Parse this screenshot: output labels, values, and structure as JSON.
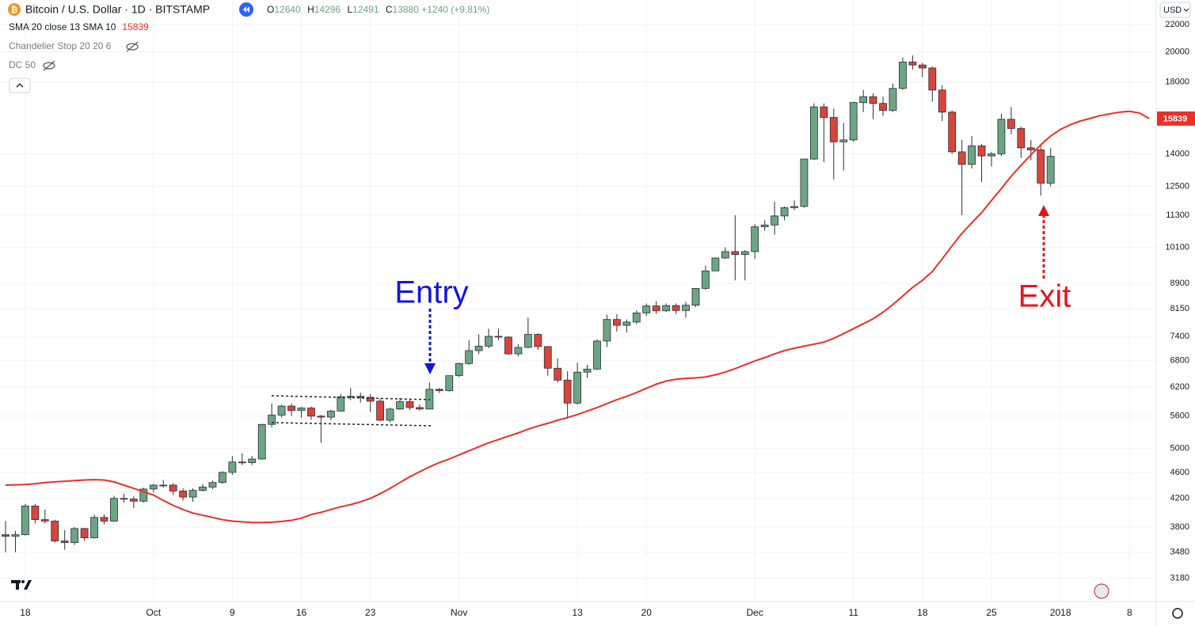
{
  "chart_data": {
    "type": "candlestick",
    "title": "Bitcoin / U.S. Dollar · 1D · BITSTAMP",
    "ohlc_labels": [
      "O",
      "H",
      "L",
      "C"
    ],
    "change": "+1240 (+9.81%)",
    "currency": "USD",
    "indicators": [
      "Chandelier Stop 20 20 6",
      "DC 50"
    ],
    "up_color": "#6ca583",
    "down_color": "#d9453a",
    "log_scale": true,
    "grid": true,
    "ylim": [
      2930,
      23970
    ],
    "yticks": [
      22000,
      20000,
      18000,
      14000,
      12500,
      11300,
      10100,
      8900,
      8150,
      7400,
      6800,
      6200,
      5600,
      5000,
      4600,
      4200,
      3800,
      3480,
      3180
    ],
    "categories": [
      null,
      null,
      "18",
      null,
      null,
      null,
      null,
      null,
      null,
      null,
      null,
      null,
      null,
      null,
      null,
      "Oct",
      null,
      null,
      null,
      null,
      null,
      null,
      null,
      "9",
      null,
      null,
      null,
      null,
      null,
      null,
      "16",
      null,
      null,
      null,
      null,
      null,
      null,
      "23",
      null,
      null,
      null,
      null,
      null,
      null,
      null,
      null,
      "Nov",
      null,
      null,
      null,
      null,
      null,
      null,
      null,
      null,
      null,
      null,
      null,
      "13",
      null,
      null,
      null,
      null,
      null,
      null,
      "20",
      null,
      null,
      null,
      null,
      null,
      null,
      null,
      null,
      null,
      null,
      "Dec",
      null,
      null,
      null,
      null,
      null,
      null,
      null,
      null,
      null,
      "11",
      null,
      null,
      null,
      null,
      null,
      null,
      "18",
      null,
      null,
      null,
      null,
      null,
      null,
      "25",
      null,
      null,
      null,
      null,
      null,
      null,
      "2018",
      null,
      null,
      null,
      null,
      null,
      null,
      "8",
      null,
      null
    ],
    "open": [
      3700,
      3680,
      3700,
      4090,
      3900,
      3880,
      3620,
      3600,
      3780,
      3660,
      3930,
      3880,
      4200,
      4190,
      4160,
      4340,
      4400,
      4400,
      4310,
      4220,
      4320,
      4370,
      4440,
      4600,
      4770,
      4760,
      4820,
      5440,
      5620,
      5800,
      5710,
      5760,
      5600,
      5580,
      5700,
      5990,
      6000,
      5980,
      5900,
      5520,
      5740,
      5890,
      5770,
      5740,
      6150,
      6120,
      6450,
      6730,
      7040,
      7150,
      7400,
      7380,
      6960,
      7120,
      7450,
      7140,
      6620,
      6350,
      5860,
      6530,
      6600,
      7280,
      7850,
      7690,
      7780,
      8030,
      8230,
      8090,
      8240,
      8100,
      8250,
      8750,
      9300,
      9730,
      9950,
      9850,
      9950,
      10850,
      10920,
      11270,
      11600,
      11650,
      13750,
      16500,
      15900,
      14600,
      14700,
      16750,
      17100,
      16700,
      16300,
      17600,
      19300,
      19100,
      18900,
      17500,
      16200,
      14100,
      13500,
      14400,
      13900,
      14000,
      15800,
      15300,
      14300,
      14200,
      12640,
      null,
      null,
      null,
      null,
      null,
      null,
      null,
      null,
      null,
      null
    ],
    "high": [
      3880,
      3750,
      4120,
      4120,
      4040,
      3900,
      3760,
      3800,
      3790,
      3970,
      3970,
      4240,
      4270,
      4230,
      4360,
      4420,
      4480,
      4430,
      4350,
      4350,
      4420,
      4470,
      4620,
      4870,
      4920,
      4870,
      5450,
      5850,
      5830,
      5850,
      5780,
      5790,
      5620,
      5720,
      6050,
      6180,
      6080,
      6050,
      5950,
      5770,
      5970,
      5950,
      5830,
      6300,
      6180,
      6450,
      6750,
      7300,
      7450,
      7600,
      7600,
      7400,
      7200,
      7900,
      7480,
      7150,
      6850,
      6550,
      6750,
      6700,
      7320,
      7980,
      8000,
      7850,
      8100,
      8300,
      8370,
      8300,
      8300,
      8350,
      8750,
      9480,
      9750,
      10100,
      11300,
      10000,
      10950,
      11100,
      11850,
      11650,
      11900,
      13750,
      16700,
      16700,
      16400,
      15600,
      16800,
      17500,
      17300,
      17100,
      17900,
      19600,
      19750,
      19250,
      19000,
      17800,
      16300,
      14700,
      14900,
      14500,
      14100,
      16100,
      16500,
      15400,
      14700,
      14400,
      14296,
      null,
      null,
      null,
      null,
      null,
      null,
      null,
      null,
      null,
      null
    ],
    "low": [
      3480,
      3480,
      3690,
      3850,
      3850,
      3600,
      3510,
      3570,
      3620,
      3650,
      3840,
      3870,
      4140,
      4060,
      4140,
      4290,
      4360,
      4250,
      4170,
      4150,
      4300,
      4340,
      4420,
      4560,
      4720,
      4720,
      4810,
      5380,
      5570,
      5600,
      5570,
      5530,
      5100,
      5520,
      5690,
      5920,
      5870,
      5680,
      5500,
      5480,
      5720,
      5720,
      5710,
      5730,
      6070,
      6100,
      6420,
      6700,
      6950,
      7100,
      7300,
      6940,
      6900,
      7100,
      7060,
      6450,
      6300,
      5550,
      5830,
      6400,
      6580,
      7130,
      7520,
      7500,
      7720,
      7950,
      8000,
      8060,
      8000,
      7900,
      8200,
      8700,
      9300,
      9700,
      9000,
      9000,
      9700,
      10700,
      10550,
      11100,
      11500,
      11600,
      13700,
      13600,
      12800,
      13200,
      14600,
      16200,
      15800,
      16000,
      16200,
      17500,
      18800,
      18300,
      16800,
      15700,
      14000,
      11300,
      13300,
      12700,
      13400,
      13900,
      15000,
      13800,
      13700,
      12100,
      12491,
      null,
      null,
      null,
      null,
      null,
      null,
      null,
      null,
      null,
      null
    ],
    "close": [
      3680,
      3700,
      4090,
      3900,
      3880,
      3620,
      3600,
      3780,
      3660,
      3930,
      3880,
      4200,
      4190,
      4160,
      4340,
      4400,
      4400,
      4310,
      4220,
      4320,
      4370,
      4440,
      4600,
      4770,
      4760,
      4820,
      5440,
      5620,
      5800,
      5710,
      5760,
      5600,
      5580,
      5700,
      5990,
      6000,
      5980,
      5900,
      5520,
      5740,
      5890,
      5770,
      5740,
      6150,
      6120,
      6450,
      6730,
      7040,
      7150,
      7400,
      7380,
      6960,
      7120,
      7450,
      7140,
      6620,
      6350,
      5860,
      6530,
      6600,
      7280,
      7850,
      7690,
      7780,
      8030,
      8230,
      8090,
      8240,
      8100,
      8250,
      8750,
      9300,
      9730,
      9950,
      9850,
      9950,
      10850,
      10920,
      11270,
      11600,
      11650,
      13750,
      16500,
      15900,
      14600,
      14700,
      16750,
      17100,
      16700,
      16300,
      17600,
      19300,
      19100,
      18900,
      17500,
      16200,
      14100,
      13500,
      14400,
      13900,
      14000,
      15800,
      15300,
      14300,
      14200,
      12640,
      13880,
      null,
      null,
      null,
      null,
      null,
      null,
      null,
      null,
      null,
      null
    ],
    "sma": {
      "name": "SMA 20 close 13 SMA 10",
      "color": "#e8302a",
      "values": [
        4400,
        4405,
        4410,
        4420,
        4440,
        4450,
        4460,
        4470,
        4480,
        4485,
        4480,
        4450,
        4400,
        4350,
        4300,
        4250,
        4170,
        4100,
        4040,
        3990,
        3960,
        3930,
        3900,
        3880,
        3870,
        3860,
        3860,
        3865,
        3875,
        3890,
        3920,
        3970,
        4000,
        4040,
        4080,
        4110,
        4150,
        4200,
        4270,
        4350,
        4440,
        4530,
        4610,
        4690,
        4760,
        4820,
        4890,
        4960,
        5030,
        5100,
        5160,
        5220,
        5280,
        5350,
        5410,
        5460,
        5520,
        5570,
        5630,
        5700,
        5770,
        5850,
        5930,
        6000,
        6080,
        6170,
        6260,
        6330,
        6370,
        6390,
        6400,
        6420,
        6470,
        6530,
        6610,
        6700,
        6790,
        6870,
        6960,
        7040,
        7100,
        7150,
        7200,
        7250,
        7350,
        7470,
        7600,
        7730,
        7870,
        8050,
        8270,
        8520,
        8780,
        9000,
        9280,
        9700,
        10150,
        10600,
        11000,
        11400,
        11900,
        12400,
        12950,
        13450,
        13950,
        14450,
        14900,
        15250,
        15500,
        15700,
        15850,
        16000,
        16100,
        16200,
        16250,
        16150,
        15839
      ]
    },
    "annotations": [
      {
        "text": "Entry",
        "color": "#1515dd"
      },
      {
        "text": "Exit",
        "color": "#e8141c"
      }
    ]
  }
}
